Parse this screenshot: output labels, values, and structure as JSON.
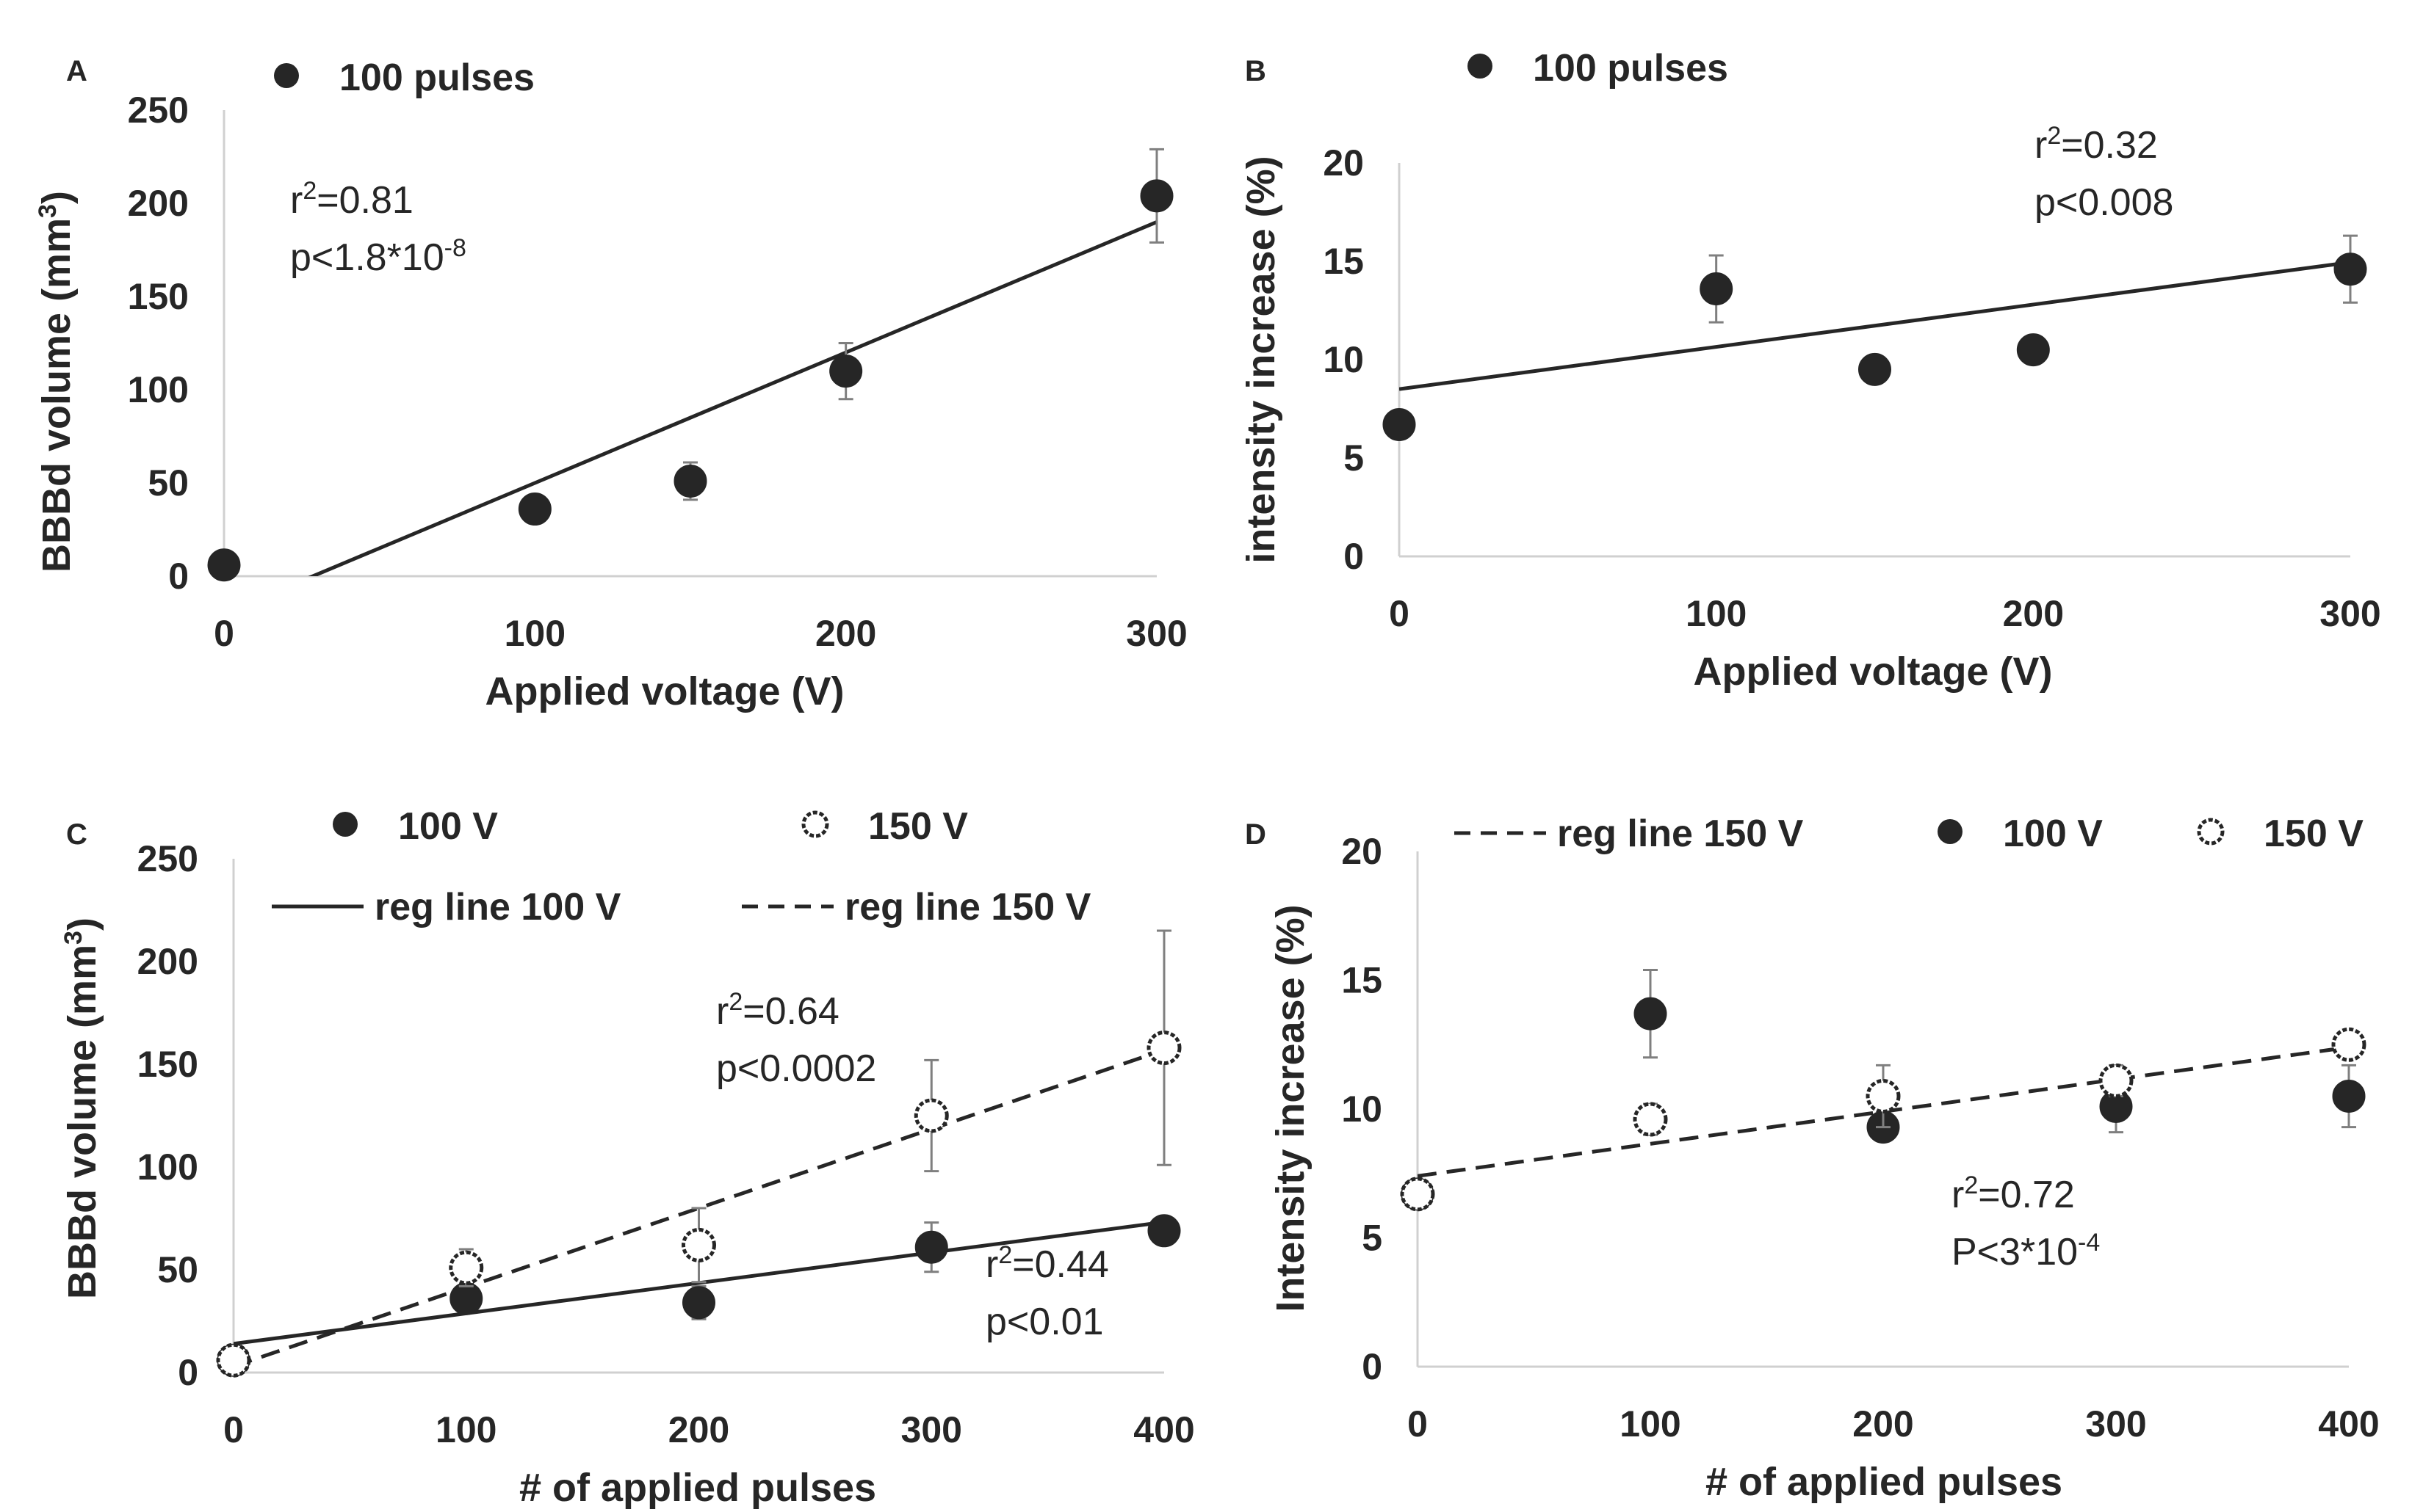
{
  "chart_data": [
    {
      "panel": "A",
      "type": "scatter",
      "x_categories": [
        "0",
        "100",
        "200",
        "300"
      ],
      "xlabel": "Applied voltage (V)",
      "ylabel": "BBBd volume (mm3)",
      "ylim": [
        0,
        250
      ],
      "yticks": [
        "0",
        "50",
        "100",
        "150",
        "200",
        "250"
      ],
      "legend": [
        {
          "label": "100 pulses",
          "marker": "filled-circle"
        }
      ],
      "series": [
        {
          "name": "100 pulses",
          "marker": "filled",
          "x": [
            0,
            100,
            150,
            200,
            300
          ],
          "y": [
            6,
            36,
            51,
            110,
            204
          ],
          "err": [
            0,
            3,
            10,
            15,
            25
          ]
        }
      ],
      "regression": [
        {
          "style": "solid",
          "slope": 0.7,
          "intercept": -20
        }
      ],
      "annotation": {
        "r2_prefix": "r",
        "r2_sup": "2",
        "r2_value": "=0.81",
        "p_text": "p<1.8*10",
        "p_sup": "-8"
      }
    },
    {
      "panel": "B",
      "type": "scatter",
      "x_categories": [
        "0",
        "100",
        "200",
        "300"
      ],
      "xlabel": "Applied voltage (V)",
      "ylabel": "intensity increase (%)",
      "ylim": [
        0,
        20
      ],
      "yticks": [
        "0",
        "5",
        "10",
        "15",
        "20"
      ],
      "legend": [
        {
          "label": "100 pulses",
          "marker": "filled-circle"
        }
      ],
      "series": [
        {
          "name": "100 pulses",
          "marker": "filled",
          "x": [
            0,
            100,
            150,
            200,
            300
          ],
          "y": [
            6.7,
            13.6,
            9.5,
            10.5,
            14.6
          ],
          "err": [
            0,
            1.7,
            0.6,
            0.5,
            1.7
          ]
        }
      ],
      "regression": [
        {
          "style": "solid",
          "slope": 0.0215,
          "intercept": 8.5
        }
      ],
      "annotation": {
        "r2_prefix": "r",
        "r2_sup": "2",
        "r2_value": "=0.32",
        "p_text": "p<0.008",
        "p_sup": ""
      }
    },
    {
      "panel": "C",
      "type": "scatter",
      "x_categories": [
        "0",
        "100",
        "200",
        "300",
        "400"
      ],
      "xlabel": "# of applied pulses",
      "ylabel": "BBBd volume (mm3)",
      "ylim": [
        0,
        250
      ],
      "yticks": [
        "0",
        "50",
        "100",
        "150",
        "200",
        "250"
      ],
      "legend": [
        {
          "label": "100 V",
          "marker": "filled-circle"
        },
        {
          "label": "150 V",
          "marker": "open-circle"
        },
        {
          "label": "reg line 100 V",
          "marker": "solid-line"
        },
        {
          "label": "reg line 150 V",
          "marker": "dashed-line"
        }
      ],
      "series": [
        {
          "name": "100 V",
          "marker": "filled",
          "x": [
            0,
            100,
            200,
            300,
            400
          ],
          "y": [
            6,
            36,
            34,
            61,
            69
          ],
          "err": [
            0,
            5,
            8,
            12,
            5
          ]
        },
        {
          "name": "150 V",
          "marker": "open",
          "x": [
            0,
            100,
            200,
            300,
            400
          ],
          "y": [
            6,
            51,
            62,
            125,
            158
          ],
          "err": [
            0,
            9,
            18,
            27,
            57
          ]
        }
      ],
      "regression": [
        {
          "style": "solid",
          "slope": 0.148,
          "intercept": 14
        },
        {
          "style": "dashed",
          "slope": 0.385,
          "intercept": 3
        }
      ],
      "annotations": [
        {
          "r2_prefix": "r",
          "r2_sup": "2",
          "r2_value": "=0.64",
          "p_text": "p<0.0002",
          "p_sup": ""
        },
        {
          "r2_prefix": "r",
          "r2_sup": "2",
          "r2_value": "=0.44",
          "p_text": "p<0.01",
          "p_sup": ""
        }
      ]
    },
    {
      "panel": "D",
      "type": "scatter",
      "x_categories": [
        "0",
        "100",
        "200",
        "300",
        "400"
      ],
      "xlabel": "# of applied pulses",
      "ylabel": "Intensity increase (%)",
      "ylim": [
        0,
        20
      ],
      "yticks": [
        "0",
        "5",
        "10",
        "15",
        "20"
      ],
      "legend": [
        {
          "label": "reg line 150 V",
          "marker": "dashed-line"
        },
        {
          "label": "100 V",
          "marker": "filled-circle"
        },
        {
          "label": "150 V",
          "marker": "open-circle"
        }
      ],
      "series": [
        {
          "name": "100 V",
          "marker": "filled",
          "x": [
            0,
            100,
            200,
            300,
            400
          ],
          "y": [
            6.7,
            13.7,
            9.3,
            10.1,
            10.5
          ],
          "err": [
            0,
            1.7,
            0.4,
            1.0,
            1.2
          ]
        },
        {
          "name": "150 V",
          "marker": "open",
          "x": [
            0,
            100,
            200,
            300,
            400
          ],
          "y": [
            6.7,
            9.6,
            10.5,
            11.1,
            12.5
          ],
          "err": [
            0,
            0.6,
            1.2,
            0.6,
            0
          ]
        }
      ],
      "regression": [
        {
          "style": "dashed",
          "slope": 0.0125,
          "intercept": 7.4
        }
      ],
      "annotation": {
        "r2_prefix": "r",
        "r2_sup": "2",
        "r2_value": "=0.72",
        "p_text": "P<3*10",
        "p_sup": "-4"
      }
    }
  ]
}
